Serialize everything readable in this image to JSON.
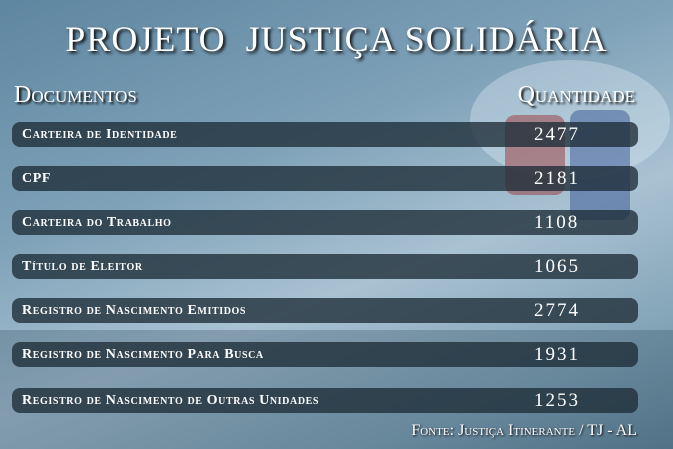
{
  "title": "PROJETO  JUSTIÇA SOLIDÁRIA",
  "headers": {
    "documents": "Documentos",
    "quantity": "Quantidade"
  },
  "rows": [
    {
      "label": "Carteira de Identidade",
      "value": "2477"
    },
    {
      "label": "CPF",
      "value": "2181"
    },
    {
      "label": "Carteira do Trabalho",
      "value": "1108"
    },
    {
      "label": "Título de Eleitor",
      "value": "1065"
    },
    {
      "label": "Registro de Nascimento Emitidos",
      "value": "2774"
    },
    {
      "label": "Registro de Nascimento Para Busca",
      "value": "1931"
    },
    {
      "label": "Registro de Nascimento de Outras Unidades",
      "value": "1253"
    }
  ],
  "source": "Fonte: Justiça Itinerante / TJ - AL",
  "colors": {
    "row_bg": "#1e2d37",
    "text": "#ffffff"
  }
}
